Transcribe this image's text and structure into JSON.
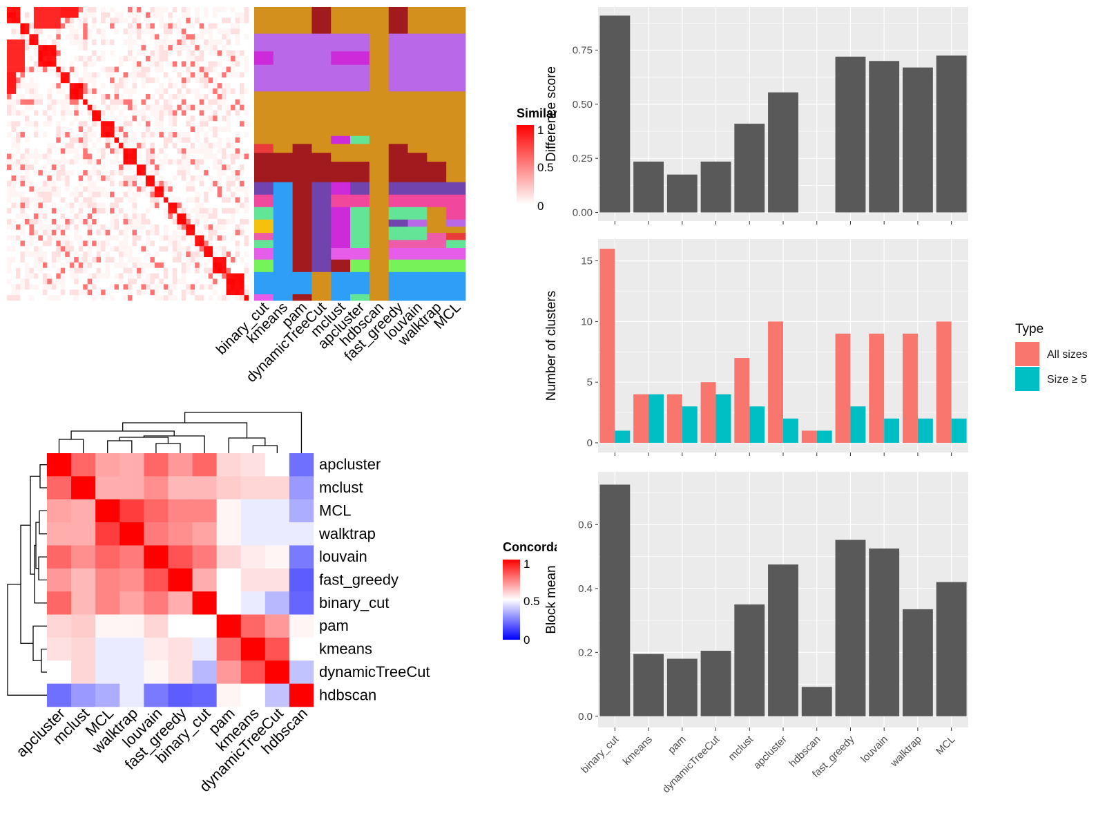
{
  "colors": {
    "panel_bg": "#ebebeb",
    "grid": "#ffffff",
    "bar": "#595959",
    "all_sizes": "#f8766d",
    "size5": "#00bfc4",
    "heat_high": "#ff0000",
    "heat_mid": "#ffffff",
    "heat_low": "#0000ff",
    "cluster_palette": [
      "#d4901c",
      "#b968e8",
      "#cd2bd9",
      "#a01a1e",
      "#7043ad",
      "#2f9ef6",
      "#f1479c",
      "#63e597",
      "#f4c20c",
      "#ee5ba8",
      "#e65de9",
      "#77f35a",
      "#eb3b3b"
    ]
  },
  "similarity_panel": {
    "legend_title": "Similarity",
    "legend_ticks": [
      "1",
      "0.5",
      "0"
    ],
    "method_labels": [
      "binary_cut",
      "kmeans",
      "pam",
      "dynamicTreeCut",
      "mclust",
      "apcluster",
      "hdbscan",
      "fast_greedy",
      "louvain",
      "walktrap",
      "MCL"
    ]
  },
  "concordance_panel": {
    "legend_title": "Concordance",
    "legend_ticks": [
      "1",
      "0.5",
      "0"
    ],
    "methods": [
      "apcluster",
      "mclust",
      "MCL",
      "walktrap",
      "louvain",
      "fast_greedy",
      "binary_cut",
      "pam",
      "kmeans",
      "dynamicTreeCut",
      "hdbscan"
    ],
    "matrix": [
      [
        1.0,
        0.8,
        0.68,
        0.66,
        0.8,
        0.7,
        0.8,
        0.58,
        0.56,
        0.5,
        0.22
      ],
      [
        0.8,
        1.0,
        0.66,
        0.66,
        0.72,
        0.64,
        0.64,
        0.6,
        0.58,
        0.58,
        0.3
      ],
      [
        0.68,
        0.66,
        1.0,
        0.88,
        0.8,
        0.74,
        0.74,
        0.52,
        0.46,
        0.46,
        0.34
      ],
      [
        0.66,
        0.66,
        0.88,
        1.0,
        0.76,
        0.72,
        0.68,
        0.52,
        0.46,
        0.46,
        0.46
      ],
      [
        0.8,
        0.72,
        0.8,
        0.76,
        1.0,
        0.84,
        0.76,
        0.58,
        0.54,
        0.52,
        0.24
      ],
      [
        0.7,
        0.64,
        0.74,
        0.72,
        0.84,
        1.0,
        0.66,
        0.5,
        0.56,
        0.56,
        0.18
      ],
      [
        0.8,
        0.64,
        0.74,
        0.68,
        0.76,
        0.66,
        1.0,
        0.5,
        0.46,
        0.36,
        0.2
      ],
      [
        0.58,
        0.6,
        0.52,
        0.52,
        0.58,
        0.5,
        0.5,
        1.0,
        0.8,
        0.7,
        0.52
      ],
      [
        0.56,
        0.58,
        0.46,
        0.46,
        0.54,
        0.56,
        0.46,
        0.8,
        1.0,
        0.84,
        0.5
      ],
      [
        0.5,
        0.58,
        0.46,
        0.46,
        0.52,
        0.56,
        0.36,
        0.7,
        0.84,
        1.0,
        0.38
      ],
      [
        0.22,
        0.3,
        0.34,
        0.46,
        0.24,
        0.18,
        0.2,
        0.52,
        0.5,
        0.38,
        1.0
      ]
    ]
  },
  "chart_data": [
    {
      "type": "bar",
      "categories": [
        "binary_cut",
        "kmeans",
        "pam",
        "dynamicTreeCut",
        "mclust",
        "apcluster",
        "hdbscan",
        "fast_greedy",
        "louvain",
        "walktrap",
        "MCL"
      ],
      "values": [
        0.91,
        0.235,
        0.175,
        0.235,
        0.41,
        0.555,
        0,
        0.72,
        0.7,
        0.67,
        0.725
      ],
      "ylabel": "Difference score",
      "ylim": [
        -0.04,
        0.95
      ],
      "yticks": [
        "0.00",
        "0.25",
        "0.50",
        "0.75"
      ],
      "ytick_values": [
        0,
        0.25,
        0.5,
        0.75
      ],
      "grid": true
    },
    {
      "type": "bar",
      "categories": [
        "binary_cut",
        "kmeans",
        "pam",
        "dynamicTreeCut",
        "mclust",
        "apcluster",
        "hdbscan",
        "fast_greedy",
        "louvain",
        "walktrap",
        "MCL"
      ],
      "series": [
        {
          "name": "All sizes",
          "values": [
            16,
            4,
            4,
            5,
            7,
            10,
            1,
            9,
            9,
            9,
            10
          ]
        },
        {
          "name": "Size ≥ 5",
          "values": [
            1,
            4,
            3,
            4,
            3,
            2,
            1,
            3,
            2,
            2,
            2
          ]
        }
      ],
      "ylabel": "Number of clusters",
      "ylim": [
        -0.8,
        16.8
      ],
      "yticks": [
        "0",
        "5",
        "10",
        "15"
      ],
      "ytick_values": [
        0,
        5,
        10,
        15
      ],
      "legend_title": "Type",
      "legend_placement": "right",
      "grid": true
    },
    {
      "type": "bar",
      "categories": [
        "binary_cut",
        "kmeans",
        "pam",
        "dynamicTreeCut",
        "mclust",
        "apcluster",
        "hdbscan",
        "fast_greedy",
        "louvain",
        "walktrap",
        "MCL"
      ],
      "values": [
        0.725,
        0.195,
        0.18,
        0.205,
        0.35,
        0.475,
        0.092,
        0.552,
        0.525,
        0.335,
        0.42
      ],
      "ylabel": "Block mean",
      "ylim": [
        -0.035,
        0.765
      ],
      "yticks": [
        "0.0",
        "0.2",
        "0.4",
        "0.6"
      ],
      "ytick_values": [
        0,
        0.2,
        0.4,
        0.6
      ],
      "grid": true
    }
  ]
}
